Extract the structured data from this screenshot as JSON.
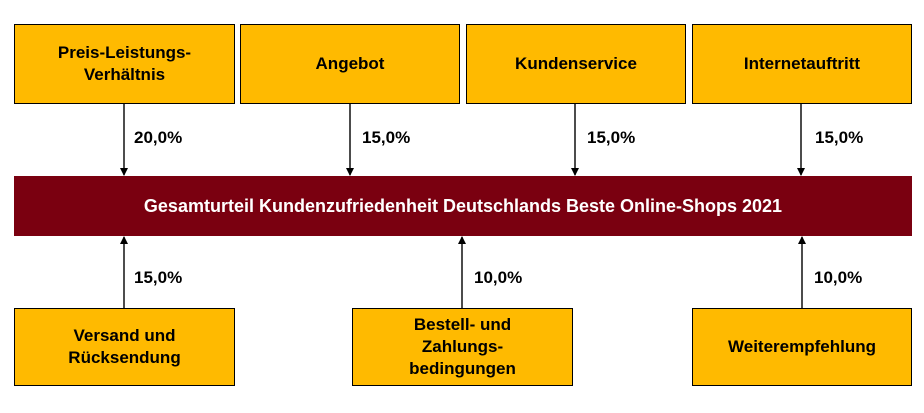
{
  "center": {
    "label": "Gesamturteil Kundenzufriedenheit Deutschlands Beste Online-Shops 2021",
    "color": "#7A0010"
  },
  "box_color": "#FFBA00",
  "top_factors": [
    {
      "label": "Preis-Leistungs-Verhältnis",
      "weight": "20,0%"
    },
    {
      "label": "Angebot",
      "weight": "15,0%"
    },
    {
      "label": "Kundenservice",
      "weight": "15,0%"
    },
    {
      "label": "Internetauftritt",
      "weight": "15,0%"
    }
  ],
  "bottom_factors": [
    {
      "label": "Versand und Rücksendung",
      "weight": "15,0%"
    },
    {
      "label": "Bestell- und Zahlungs-bedingungen",
      "weight": "10,0%"
    },
    {
      "label": "Weiterempfehlung",
      "weight": "10,0%"
    }
  ]
}
